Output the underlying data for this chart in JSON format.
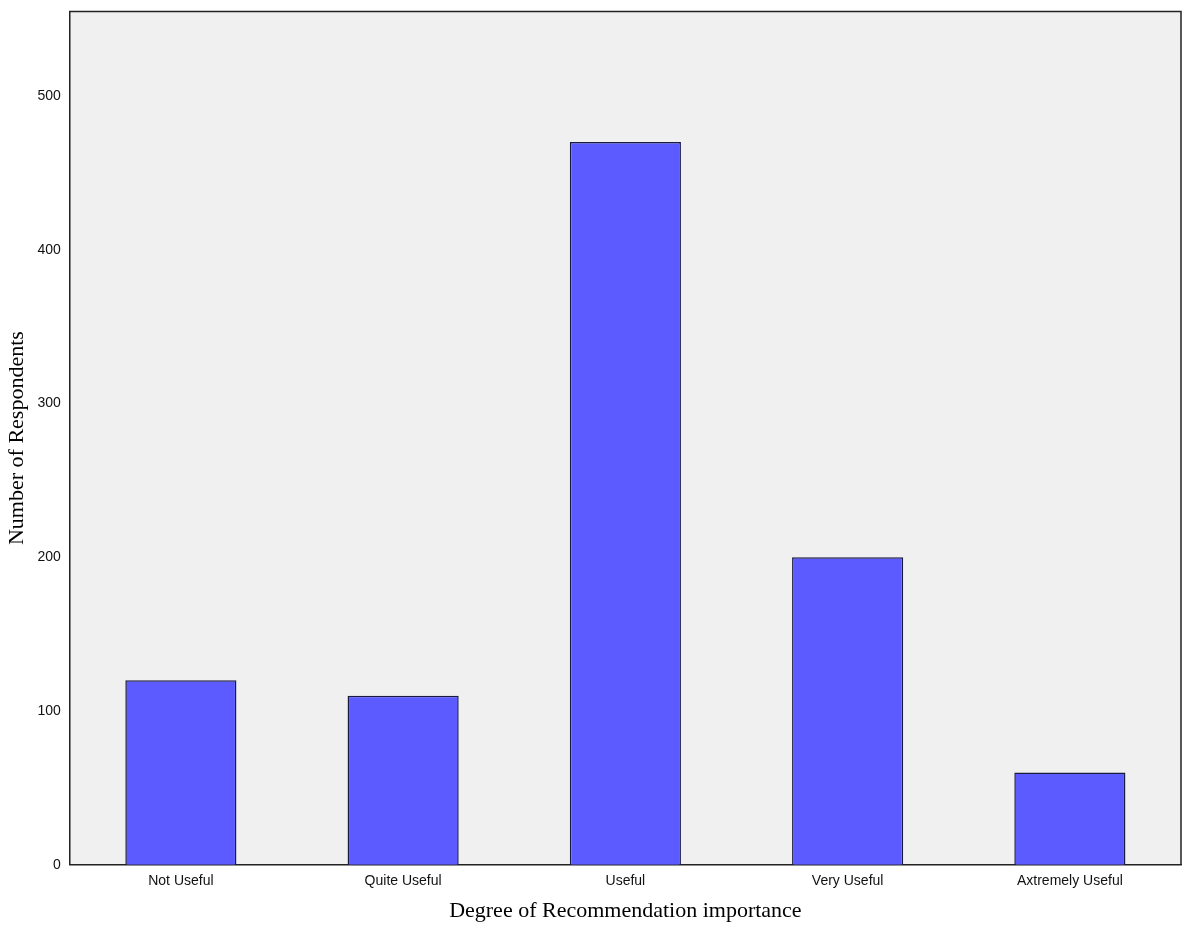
{
  "chart_data": {
    "type": "bar",
    "xlabel": "Degree of Recommendation importance",
    "ylabel": "Number of Respondents",
    "categories": [
      "Not Useful",
      "Quite Useful",
      "Useful",
      "Very Useful",
      "Axtremely Useful"
    ],
    "values": [
      120,
      110,
      470,
      200,
      60
    ],
    "color": "#5b5bff",
    "ylim": [
      0,
      555
    ],
    "yticks": [
      0,
      100,
      200,
      300,
      400,
      500
    ],
    "grid": false,
    "legend": false
  }
}
